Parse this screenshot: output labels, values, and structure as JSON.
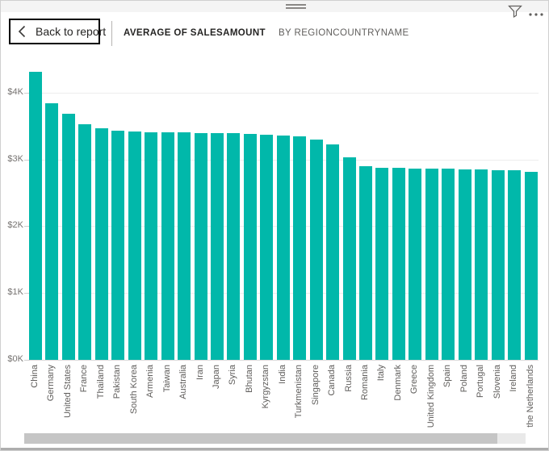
{
  "header": {
    "back_button_label": "Back to report",
    "title": "AVERAGE OF SALESAMOUNT",
    "subtitle": "BY REGIONCOUNTRYNAME",
    "icons": [
      "drag-handle",
      "filter-funnel-icon",
      "more-options-icon",
      "chevron-left-icon"
    ]
  },
  "colors": {
    "bar": "#01B8AA",
    "title_text": "#252423",
    "subtitle_text": "#605E5C",
    "axis_text": "#767371",
    "gridline": "#EDEDED",
    "axis_line": "#D9D9D9"
  },
  "chart_data": {
    "type": "bar",
    "title": "AVERAGE OF SALESAMOUNT BY REGIONCOUNTRYNAME",
    "xlabel": "",
    "ylabel": "",
    "unit": "USD",
    "ylim": [
      0,
      4400
    ],
    "y_ticks": [
      "$0K",
      "$1K",
      "$2K",
      "$3K",
      "$4K"
    ],
    "grid": true,
    "legend": "none",
    "bar_color": "#01B8AA",
    "categories": [
      "China",
      "Germany",
      "United States",
      "France",
      "Thailand",
      "Pakistan",
      "South Korea",
      "Armenia",
      "Taiwan",
      "Australia",
      "Iran",
      "Japan",
      "Syria",
      "Bhutan",
      "Kyrgyzstan",
      "India",
      "Turkmenistan",
      "Singapore",
      "Canada",
      "Russia",
      "Romania",
      "Italy",
      "Denmark",
      "Greece",
      "United Kingdom",
      "Spain",
      "Poland",
      "Portugal",
      "Slovenia",
      "Ireland",
      "the Netherlands"
    ],
    "values": [
      4310,
      3840,
      3680,
      3530,
      3470,
      3430,
      3420,
      3410,
      3405,
      3400,
      3398,
      3396,
      3390,
      3380,
      3370,
      3360,
      3350,
      3300,
      3220,
      3030,
      2900,
      2875,
      2872,
      2868,
      2862,
      2858,
      2852,
      2848,
      2842,
      2838,
      2810
    ]
  }
}
